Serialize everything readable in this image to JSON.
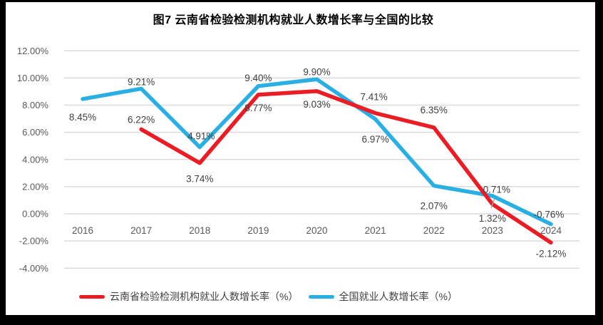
{
  "frame": {
    "background": "#000000",
    "panel_background": "#ffffff"
  },
  "chart_data": {
    "type": "line",
    "title": "图7  云南省检验检测机构就业人数增长率与全国的比较",
    "categories": [
      "2016",
      "2017",
      "2018",
      "2019",
      "2020",
      "2021",
      "2022",
      "2023",
      "2024"
    ],
    "series": [
      {
        "name": "云南省检验检测机构就业人数增长率（%）",
        "color": "#EC1C24",
        "values": [
          null,
          6.22,
          3.74,
          8.77,
          9.03,
          7.41,
          6.35,
          0.71,
          -2.12
        ],
        "label_offsets": [
          null,
          [
            0,
            -9
          ],
          [
            0,
            27
          ],
          [
            0,
            23
          ],
          [
            0,
            23
          ],
          [
            -2,
            -18
          ],
          [
            0,
            -20
          ],
          [
            6,
            -16
          ],
          [
            0,
            20
          ]
        ]
      },
      {
        "name": "全国就业人数增长率（%）",
        "color": "#29AFE3",
        "values": [
          8.45,
          9.21,
          4.91,
          9.4,
          9.9,
          6.97,
          2.07,
          1.32,
          -0.76
        ],
        "label_offsets": [
          [
            0,
            30
          ],
          [
            0,
            -5
          ],
          [
            2,
            -11
          ],
          [
            0,
            -7
          ],
          [
            0,
            -6
          ],
          [
            0,
            33
          ],
          [
            0,
            33
          ],
          [
            0,
            36
          ],
          [
            -3,
            -9
          ]
        ],
        "leader_point_index": 7
      }
    ],
    "y_axis": {
      "min": -4,
      "max": 12,
      "step": 2
    },
    "y_tick_labels": [
      "12.00%",
      "10.00%",
      "8.00%",
      "6.00%",
      "4.00%",
      "2.00%",
      "0.00%",
      "-2.00%",
      "-4.00%"
    ],
    "grid": true,
    "legend_position": "bottom",
    "label_format": "0.00%",
    "colors": {
      "gridline": "#DBDBDB",
      "tick_label": "#595959",
      "data_label": "#404040",
      "leader": "#A6A6A6",
      "title": "#000000"
    }
  }
}
